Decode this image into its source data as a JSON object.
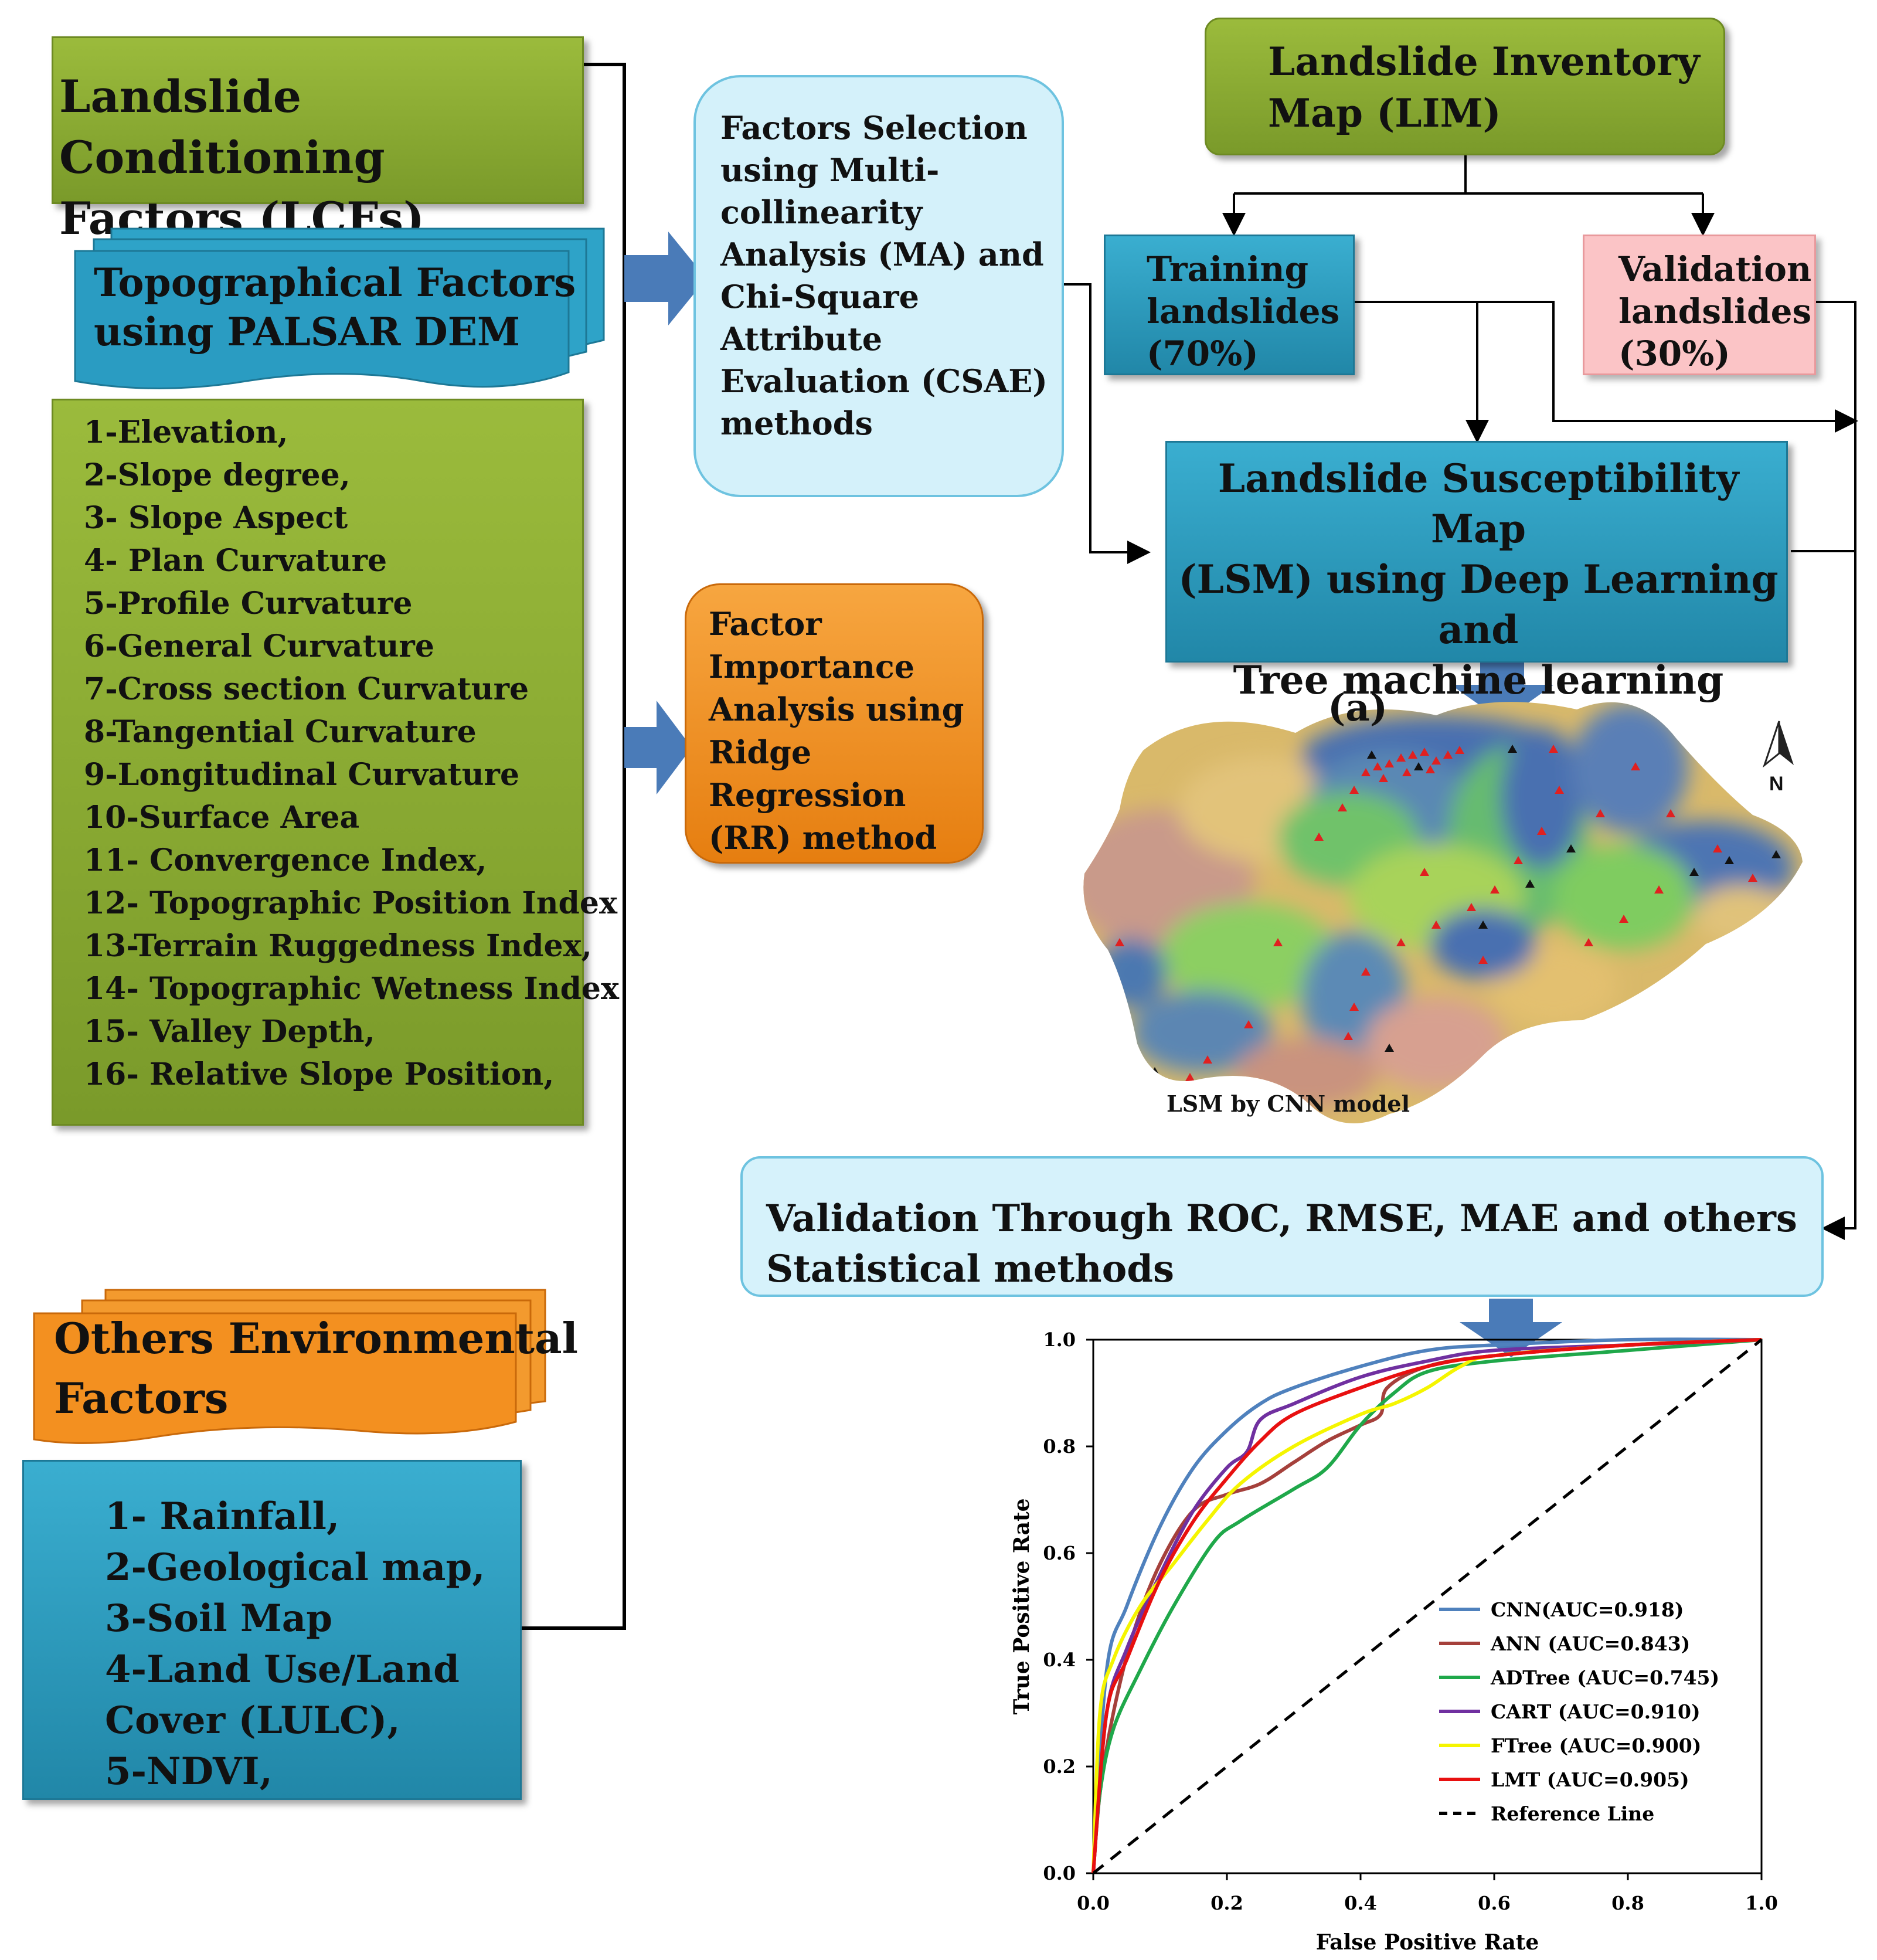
{
  "lcf": {
    "title": "Landslide Conditioning\nFactors (LCFs)"
  },
  "topo": {
    "title": "Topographical Factors\nusing PALSAR  DEM"
  },
  "topo_list": [
    "1-Elevation,",
    "2-Slope degree,",
    "3- Slope Aspect",
    "4- Plan Curvature",
    "5-Profile Curvature",
    "6-General Curvature",
    "7-Cross section Curvature",
    "8-Tangential Curvature",
    " 9-Longitudinal Curvature",
    "10-Surface Area",
    "11- Convergence Index,",
    "12- Topographic Position Index",
    "13-Terrain Ruggedness Index,",
    "14- Topographic Wetness Index",
    "15- Valley Depth,",
    "16- Relative Slope Position,"
  ],
  "others": {
    "title": "Others Environmental\nFactors"
  },
  "others_list": [
    "1- Rainfall,",
    "2-Geological map,",
    "3-Soil Map",
    "4-Land Use/Land",
    "Cover (LULC),",
    "5-NDVI,"
  ],
  "factor_selection": {
    "text": "Factors Selection\nusing Multi-\ncollinearity\nAnalysis (MA) and\nChi-Square\nAttribute\nEvaluation (CSAE)\nmethods"
  },
  "factor_importance": {
    "text": "Factor\nImportance\nAnalysis using\nRidge Regression\n(RR) method"
  },
  "lim": {
    "text": "Landslide Inventory\n Map (LIM)"
  },
  "training": {
    "text": "Training\nlandslides\n(70%)"
  },
  "validation": {
    "text": "Validation\nlandslides\n(30%)"
  },
  "lsm": {
    "text": "Landslide Susceptibility Map\n(LSM) using Deep Learning and\nTree machine learning\napproaches"
  },
  "map": {
    "panel_label": "(a)",
    "caption": "LSM by CNN model",
    "north": "N"
  },
  "validation_methods": {
    "text": "Validation Through ROC, RMSE, MAE and others\nStatistical methods"
  },
  "colors": {
    "CNN": "#4f81bd",
    "ANN": "#a5403b",
    "ADTree": "#1fa84a",
    "CART": "#7030a0",
    "FTree": "#f5f500",
    "LMT": "#e81010"
  },
  "chart_data": {
    "type": "line",
    "xlabel": "False Positive Rate",
    "ylabel": "True Positive Rate",
    "xlim": [
      0,
      1
    ],
    "ylim": [
      0,
      1
    ],
    "xticks": [
      "0.0",
      "0.2",
      "0.4",
      "0.6",
      "0.8",
      "1.0"
    ],
    "yticks": [
      "0.0",
      "0.2",
      "0.4",
      "0.6",
      "0.8",
      "1.0"
    ],
    "legend_position": "bottom-right",
    "series": [
      {
        "name": "CNN(AUC=0.918)",
        "key": "CNN",
        "x": [
          0,
          0.02,
          0.05,
          0.1,
          0.15,
          0.2,
          0.25,
          0.3,
          0.4,
          0.5,
          0.6,
          0.8,
          1.0
        ],
        "y": [
          0,
          0.38,
          0.5,
          0.65,
          0.76,
          0.83,
          0.88,
          0.91,
          0.95,
          0.98,
          0.99,
          1.0,
          1.0
        ]
      },
      {
        "name": "ANN (AUC=0.843)",
        "key": "ANN",
        "x": [
          0,
          0.01,
          0.03,
          0.06,
          0.1,
          0.15,
          0.2,
          0.25,
          0.3,
          0.35,
          0.4,
          0.43,
          0.44,
          0.5,
          0.6,
          0.8,
          1.0
        ],
        "y": [
          0,
          0.15,
          0.3,
          0.45,
          0.58,
          0.68,
          0.71,
          0.73,
          0.77,
          0.81,
          0.84,
          0.86,
          0.91,
          0.95,
          0.97,
          0.99,
          1.0
        ]
      },
      {
        "name": "ADTree (AUC=0.745)",
        "key": "ADTree",
        "x": [
          0,
          0.01,
          0.03,
          0.07,
          0.12,
          0.18,
          0.22,
          0.3,
          0.35,
          0.4,
          0.45,
          0.5,
          0.6,
          0.8,
          1.0
        ],
        "y": [
          0,
          0.15,
          0.27,
          0.38,
          0.5,
          0.62,
          0.66,
          0.72,
          0.76,
          0.84,
          0.9,
          0.94,
          0.96,
          0.98,
          1.0
        ]
      },
      {
        "name": "CART (AUC=0.910)",
        "key": "CART",
        "x": [
          0,
          0.02,
          0.05,
          0.1,
          0.15,
          0.2,
          0.23,
          0.25,
          0.3,
          0.4,
          0.5,
          0.6,
          0.8,
          1.0
        ],
        "y": [
          0,
          0.3,
          0.42,
          0.56,
          0.68,
          0.76,
          0.79,
          0.85,
          0.88,
          0.93,
          0.96,
          0.98,
          0.99,
          1.0
        ]
      },
      {
        "name": "FTree (AUC=0.900)",
        "key": "FTree",
        "x": [
          0,
          0.01,
          0.03,
          0.07,
          0.12,
          0.17,
          0.22,
          0.3,
          0.4,
          0.45,
          0.5,
          0.55,
          0.6,
          0.8,
          1.0
        ],
        "y": [
          0,
          0.3,
          0.4,
          0.5,
          0.58,
          0.66,
          0.73,
          0.8,
          0.86,
          0.88,
          0.91,
          0.95,
          0.97,
          0.99,
          1.0
        ]
      },
      {
        "name": "LMT (AUC=0.905)",
        "key": "LMT",
        "x": [
          0,
          0.02,
          0.05,
          0.1,
          0.15,
          0.2,
          0.25,
          0.3,
          0.4,
          0.5,
          0.6,
          0.8,
          1.0
        ],
        "y": [
          0,
          0.3,
          0.4,
          0.55,
          0.66,
          0.74,
          0.81,
          0.86,
          0.91,
          0.95,
          0.97,
          0.99,
          1.0
        ]
      },
      {
        "name": "Reference Line",
        "key": "REF",
        "dashed": true,
        "x": [
          0,
          1
        ],
        "y": [
          0,
          1
        ]
      }
    ]
  }
}
